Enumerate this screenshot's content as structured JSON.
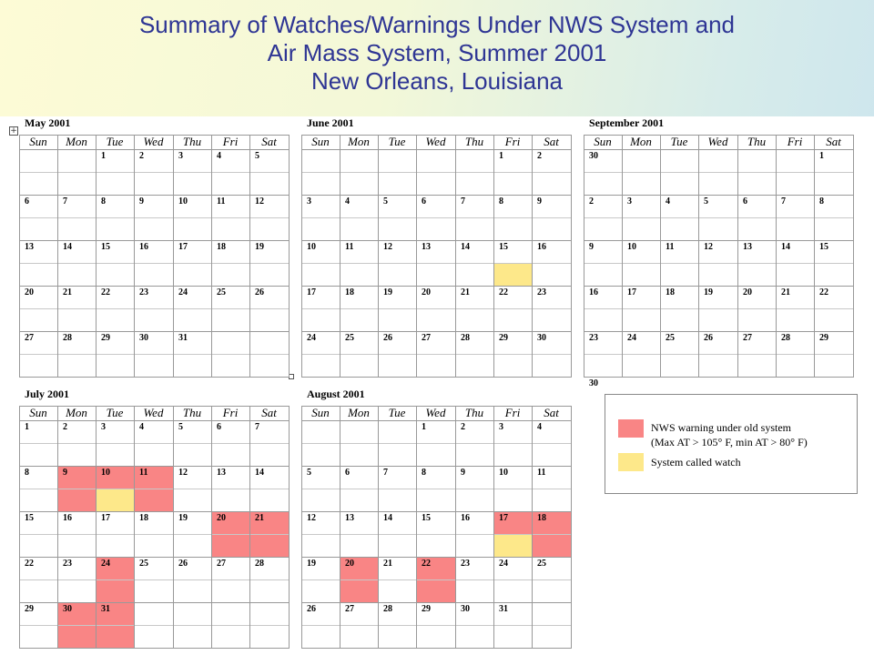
{
  "header": {
    "line1": "Summary of Watches/Warnings Under NWS System and",
    "line2": "Air Mass System, Summer 2001",
    "line3": "New Orleans, Louisiana"
  },
  "weekdays": [
    "Sun",
    "Mon",
    "Tue",
    "Wed",
    "Thu",
    "Fri",
    "Sat"
  ],
  "colors": {
    "warning": "#f98585",
    "watch": "#fde88a"
  },
  "months": [
    {
      "title": "May 2001",
      "startDay": 2,
      "days": 31,
      "rows": 5,
      "warnings": [],
      "watches": []
    },
    {
      "title": "June 2001",
      "startDay": 5,
      "days": 30,
      "rows": 5,
      "warnings": [],
      "watches": [
        15
      ]
    },
    {
      "title": "September 2001",
      "startDay": 6,
      "days": 30,
      "rows": 5,
      "leading": [
        30
      ],
      "warnings": [],
      "watches": []
    },
    {
      "title": "July 2001",
      "startDay": 0,
      "days": 31,
      "rows": 5,
      "warnings": [
        9,
        10,
        11,
        20,
        21,
        24,
        30,
        31
      ],
      "watches": [
        10
      ]
    },
    {
      "title": "August 2001",
      "startDay": 3,
      "days": 31,
      "rows": 5,
      "warnings": [
        17,
        18,
        20,
        22
      ],
      "watches": [
        17
      ]
    }
  ],
  "legend": {
    "warning_line1": "NWS warning under old system",
    "warning_line2": "(Max AT > 105° F, min AT > 80° F)",
    "watch_label": "System called watch"
  }
}
